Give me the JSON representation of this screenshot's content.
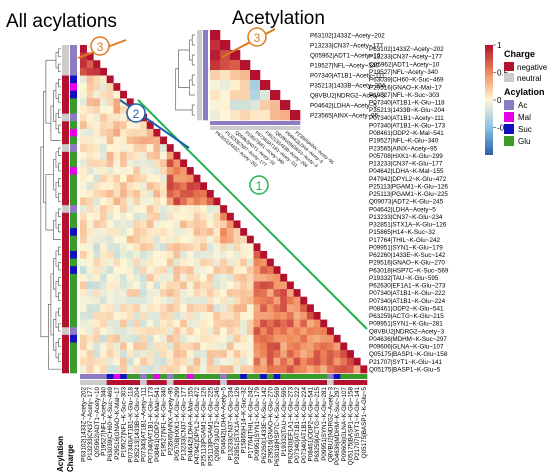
{
  "titles": {
    "all": "All acylations",
    "acetylation": "Acetylation"
  },
  "markers": [
    "1",
    "2",
    "3",
    "3"
  ],
  "legend": {
    "colorbar_ticks": [
      "1",
      "0.5",
      "0",
      "-0.5"
    ],
    "charge_title": "Charge",
    "charge_items": [
      {
        "label": "negative",
        "color": "#b3122e"
      },
      {
        "label": "neutral",
        "color": "#cccccc"
      }
    ],
    "acylation_title": "Acylation",
    "acylation_items": [
      {
        "label": "Ac",
        "color": "#8e7cc3"
      },
      {
        "label": "Mal",
        "color": "#e600e6"
      },
      {
        "label": "Suc",
        "color": "#1010c0"
      },
      {
        "label": "Glu",
        "color": "#3a9a2a"
      }
    ]
  },
  "axis_labels": {
    "acylation": "Acylation",
    "charge": "Charge"
  },
  "colors": {
    "line1": "#22b24c",
    "line2": "#1f5fb0",
    "line3": "#e07b22"
  },
  "acet_labels": [
    "P63102|1433Z~Acety~202",
    "P13233|CN37~Acety~177",
    "Q05962|ADT1~Acety~10",
    "P19527|NFL~Acety~340",
    "P07340|AT1B1~Acety~111",
    "P35213|1433B~Acety~204",
    "Q8VBU2|NDRG2~Acety~3",
    "P04642|LDHA~Acety~5",
    "P23565|AINX~Acety~95"
  ],
  "acet_bottom_labels": [
    "P63102|1433Z~Acety~202",
    "P13233|CN37~Acety~177",
    "Q05962|ADT1~Acety~10",
    "P19527|NFL~Acety~340",
    "P07340|AT1B1~Acety~111",
    "P35213|1433B~Acety~204",
    "Q8VBU2|NDRG2~Acety~3",
    "P04642|LDHA~Acety~5",
    "P23565|AINX~Acety~95"
  ],
  "right_labels": [
    "P63102|1433Z~Acety~202",
    "P13233|CN37~Acety~177",
    "Q05962|ADT1~Acety~10",
    "P19527|NFL~Acety~340",
    "P63039|CH60~K-Suc~469",
    "P29516|GNAO~K-Mal~17",
    "P19527|NFL~K-Suc~303",
    "P07340|AT1B1~K-Glu~118",
    "P35213|1433B~K-Glu~204",
    "P07340|AT1B1~Acety~111",
    "P07340|AT1B1~K-Glu~173",
    "P08461|ODP2~K-Mal~541",
    "P19527|NFL~K-Glu~340",
    "P23565|AINX~Acety~95",
    "P05708|HXK1~K-Glu~299",
    "P13233|CN37~K-Glu~177",
    "P04642|LDHA~K-Mal~155",
    "P47942|DPYL2~K-Glu~472",
    "P25113|PGAM1~K-Glu~126",
    "P25113|PGAM1~K-Glu~225",
    "Q09073|ADT2~K-Glu~245",
    "P04642|LDHA~Acety~5",
    "P13233|CN37~K-Glu~234",
    "P32851|STX1A~K-Glu~126",
    "P15865|H14~K-Suc~32",
    "P17764|THIL~K-Glu~242",
    "P09951|SYN1~K-Glu~179",
    "P62260|1433E~K-Suc~142",
    "P29516|GNAO~K-Glu~270",
    "P63018|HSP7C~K-Suc~569",
    "P19332|TAU~K-Glu~595",
    "P62630|EF1A1~K-Glu~273",
    "P07340|AT1B1~K-Glu~222",
    "P07340|AT1B1~K-Glu~224",
    "P08461|ODP2~K-Glu~541",
    "P63259|ACTG~K-Glu~215",
    "P09951|SYN1~K-Glu~281",
    "Q8VBU2|NDRG2~Acety~3",
    "P04636|MDHM~K-Suc~297",
    "P09606|GLNA~K-Glu~107",
    "Q05175|BASP1~K-Glu~158",
    "P21707|SYT1~K-Glu~141",
    "Q05175|BASP1~K-Glu~5"
  ],
  "bottom_labels": [
    "P63102|1433Z~Acety~202",
    "P13233|CN37~Acety~177",
    "Q05962|ADT1~Acety~10",
    "P19527|NFL~Acety~340",
    "P63039|CH60~K-Suc~469",
    "P29516|GNAO~K-Mal~17",
    "P19527|NFL~K-Suc~303",
    "P07340|AT1B1~K-Glu~118",
    "P35213|1433B~K-Glu~204",
    "P07340|AT1B1~Acety~111",
    "P07340|AT1B1~K-Glu~173",
    "P08461|ODP2~K-Mal~541",
    "P19527|NFL~K-Glu~340",
    "P23565|AINX~Acety~95",
    "P05708|HXK1~K-Glu~299",
    "P13233|CN37~K-Glu~177",
    "P04642|LDHA~K-Mal~155",
    "P47942|DPYL2~K-Glu~472",
    "P25113|PGAM1~K-Glu~126",
    "P25113|PGAM1~K-Glu~225",
    "Q09073|ADT2~K-Glu~245",
    "P04642|LDHA~Acety~5",
    "P13233|CN37~K-Glu~234",
    "P32851|STX1A~K-Glu~126",
    "P15865|H14~K-Suc~32",
    "P17764|THIL~K-Glu~242",
    "P09951|SYN1~K-Glu~179",
    "P62260|1433E~K-Suc~142",
    "P29516|GNAO~K-Glu~270",
    "P63018|HSP7C~K-Suc~569",
    "P19332|TAU~K-Glu~595",
    "P62630|EF1A1~K-Glu~273",
    "P07340|AT1B1~K-Glu~222",
    "P07340|AT1B1~K-Glu~224",
    "P08461|ODP2~K-Glu~541",
    "P63259|ACTG~K-Glu~215",
    "P09951|SYN1~K-Glu~281",
    "Q8VBU2|NDRG2~Acety~3",
    "P04636|MDHM~K-Suc~297",
    "P09606|GLNA~K-Glu~107",
    "Q05175|BASP1~K-Glu~158",
    "P21707|SYT1~K-Glu~141",
    "Q05175|BASP1~K-Glu~5"
  ],
  "main_acyl": [
    "Ac",
    "Ac",
    "Ac",
    "Ac",
    "Suc",
    "Mal",
    "Suc",
    "Glu",
    "Glu",
    "Ac",
    "Glu",
    "Mal",
    "Glu",
    "Ac",
    "Glu",
    "Glu",
    "Mal",
    "Glu",
    "Glu",
    "Glu",
    "Glu",
    "Ac",
    "Glu",
    "Glu",
    "Suc",
    "Glu",
    "Glu",
    "Suc",
    "Glu",
    "Suc",
    "Glu",
    "Glu",
    "Glu",
    "Glu",
    "Glu",
    "Glu",
    "Glu",
    "Ac",
    "Suc",
    "Glu",
    "Glu",
    "Glu",
    "Glu"
  ],
  "main_charge": [
    "neutral",
    "neutral",
    "neutral",
    "neutral",
    "negative",
    "negative",
    "negative",
    "negative",
    "negative",
    "neutral",
    "negative",
    "negative",
    "negative",
    "neutral",
    "negative",
    "negative",
    "negative",
    "negative",
    "negative",
    "negative",
    "negative",
    "neutral",
    "negative",
    "negative",
    "negative",
    "negative",
    "negative",
    "negative",
    "negative",
    "negative",
    "negative",
    "negative",
    "negative",
    "negative",
    "negative",
    "negative",
    "negative",
    "neutral",
    "negative",
    "negative",
    "negative",
    "negative",
    "negative"
  ],
  "acet_acyl": [
    "Ac",
    "Ac",
    "Ac",
    "Ac",
    "Ac",
    "Ac",
    "Ac",
    "Ac",
    "Ac"
  ],
  "acet_charge": [
    "neutral",
    "neutral",
    "neutral",
    "neutral",
    "neutral",
    "neutral",
    "neutral",
    "neutral",
    "neutral"
  ],
  "main_blocks": [
    {
      "from": 0,
      "to": 3,
      "level": 0.85
    },
    {
      "from": 4,
      "to": 12,
      "level": 0.15
    },
    {
      "from": 13,
      "to": 20,
      "level": 0.6
    },
    {
      "from": 21,
      "to": 25,
      "level": 0.35
    },
    {
      "from": 26,
      "to": 42,
      "level": 0.55
    }
  ],
  "acet_blocks": [
    {
      "from": 0,
      "to": 3,
      "level": 0.9
    },
    {
      "from": 4,
      "to": 6,
      "level": -0.3
    },
    {
      "from": 7,
      "to": 8,
      "level": 0.4
    }
  ]
}
